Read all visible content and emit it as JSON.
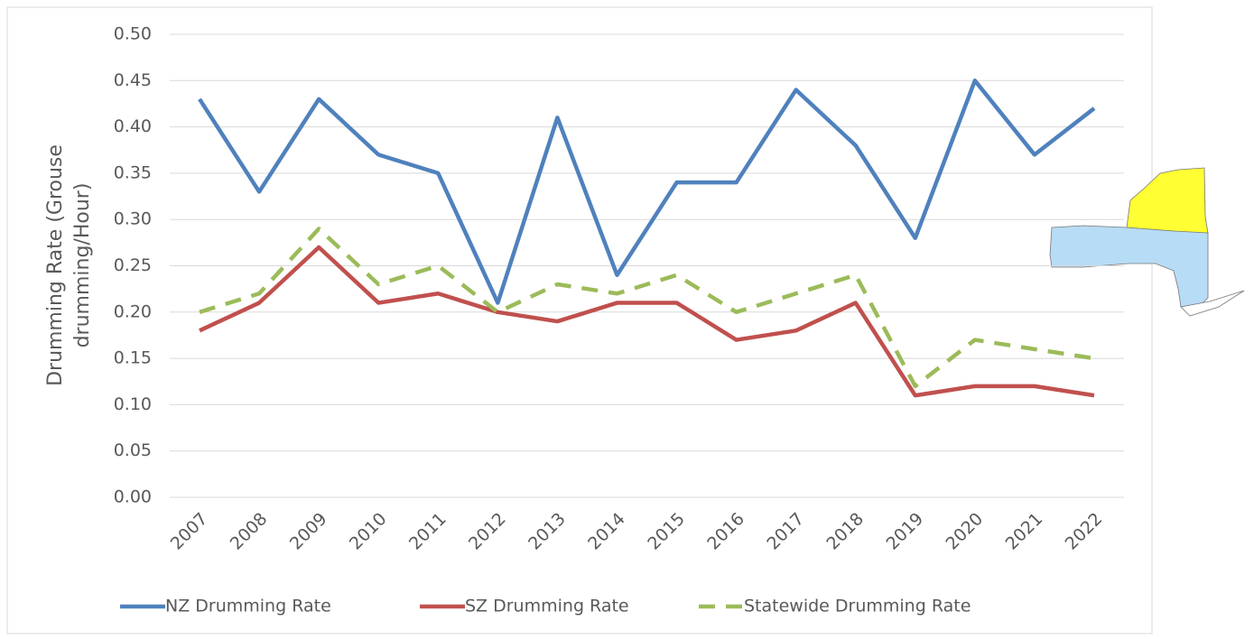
{
  "chart_data": {
    "type": "line",
    "ylabel": [
      "Drumming Rate (Grouse",
      "drumming/Hour)"
    ],
    "categories": [
      "2007",
      "2008",
      "2009",
      "2010",
      "2011",
      "2012",
      "2013",
      "2014",
      "2015",
      "2016",
      "2017",
      "2018",
      "2019",
      "2020",
      "2021",
      "2022"
    ],
    "series": [
      {
        "name": "NZ Drumming Rate",
        "color": "#4f81bd",
        "dash": false,
        "values": [
          0.43,
          0.33,
          0.43,
          0.37,
          0.35,
          0.21,
          0.41,
          0.24,
          0.34,
          0.34,
          0.44,
          0.38,
          0.28,
          0.45,
          0.37,
          0.42
        ]
      },
      {
        "name": "SZ Drumming Rate",
        "color": "#c0504d",
        "dash": false,
        "values": [
          0.18,
          0.21,
          0.27,
          0.21,
          0.22,
          0.2,
          0.19,
          0.21,
          0.21,
          0.17,
          0.18,
          0.21,
          0.11,
          0.12,
          0.12,
          0.11
        ]
      },
      {
        "name": "Statewide Drumming Rate",
        "color": "#9bbb59",
        "dash": true,
        "values": [
          0.2,
          0.22,
          0.29,
          0.23,
          0.25,
          0.2,
          0.23,
          0.22,
          0.24,
          0.2,
          0.22,
          0.24,
          0.12,
          0.17,
          0.16,
          0.15
        ]
      }
    ],
    "ylim": [
      0,
      0.5
    ],
    "yticks": [
      {
        "value": 0,
        "label": "0.00"
      },
      0.05,
      {
        "value": 0.1,
        "label": "0.10"
      },
      0.15,
      {
        "value": 0.2,
        "label": "0.20"
      },
      0.25,
      {
        "value": 0.3,
        "label": "0.30"
      },
      0.35,
      {
        "value": 0.4,
        "label": "0.40"
      },
      0.45,
      {
        "value": 0.5,
        "label": "0.50"
      }
    ],
    "grid": true,
    "legend": "bottom"
  }
}
